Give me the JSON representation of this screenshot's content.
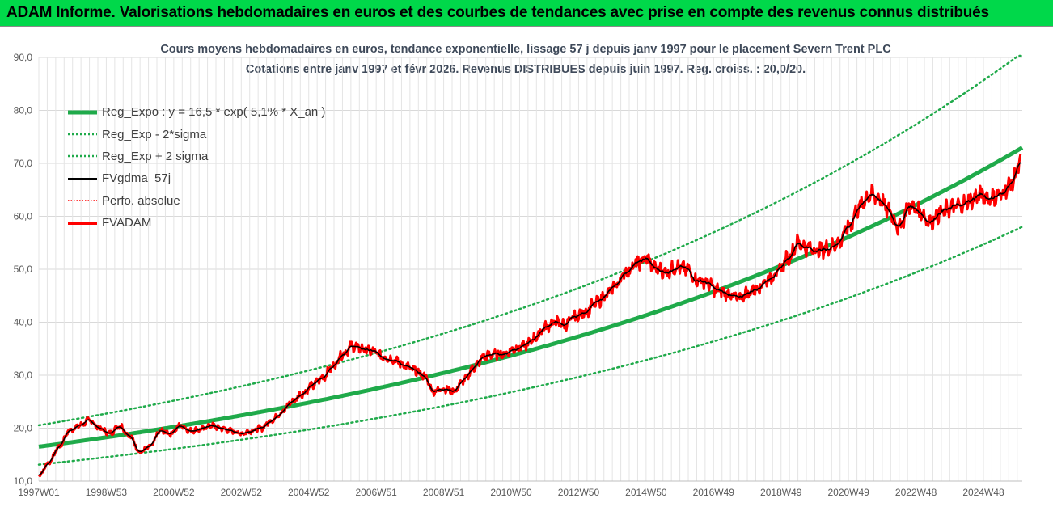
{
  "header": {
    "title": "ADAM Informe. Valorisations hebdomadaires en euros et des courbes de tendances avec prise en compte des revenus connus distribués"
  },
  "chart_data": {
    "type": "line",
    "title": "Cours moyens hebdomadaires en euros, tendance exponentielle, lissage 57 j depuis janv 1997 pour le placement Severn Trent PLC",
    "subtitle": "Cotations entre janv 1997 et févr 2026. Revenus DISTRIBUES depuis juin 1997. Reg. croiss. : 20,0/20.",
    "xlabel": "",
    "ylabel": "",
    "x_range": [
      1997.0,
      2026.15
    ],
    "ylim": [
      10.0,
      90.0
    ],
    "y_ticks": [
      "10,0",
      "20,0",
      "30,0",
      "40,0",
      "50,0",
      "60,0",
      "70,0",
      "80,0",
      "90,0"
    ],
    "x_ticks": [
      {
        "label": "1997W01",
        "year": 1997.0
      },
      {
        "label": "1998W53",
        "year": 1999.0
      },
      {
        "label": "2000W52",
        "year": 2001.0
      },
      {
        "label": "2002W52",
        "year": 2003.0
      },
      {
        "label": "2004W52",
        "year": 2005.0
      },
      {
        "label": "2006W51",
        "year": 2007.0
      },
      {
        "label": "2008W51",
        "year": 2009.0
      },
      {
        "label": "2010W50",
        "year": 2011.0
      },
      {
        "label": "2012W50",
        "year": 2013.0
      },
      {
        "label": "2014W50",
        "year": 2015.0
      },
      {
        "label": "2016W49",
        "year": 2017.0
      },
      {
        "label": "2018W49",
        "year": 2019.0
      },
      {
        "label": "2020W49",
        "year": 2021.0
      },
      {
        "label": "2022W48",
        "year": 2023.0
      },
      {
        "label": "2024W48",
        "year": 2025.0
      }
    ],
    "grid": true,
    "legend_placement": "top-left",
    "series": [
      {
        "name": "Reg_Expo : y = 16,5 * exp( 5,1% *  X_an )",
        "style": "thick-solid",
        "color": "#1faa4a",
        "formula": {
          "a": 16.5,
          "rate": 0.051
        }
      },
      {
        "name": "Reg_Exp - 2*sigma",
        "style": "dotted",
        "color": "#1faa4a",
        "formula": {
          "a": 16.5,
          "rate": 0.051,
          "factor": 0.795
        }
      },
      {
        "name": "Reg_Exp + 2 sigma",
        "style": "dotted",
        "color": "#1faa4a",
        "formula": {
          "a": 16.5,
          "rate": 0.051,
          "factor": 1.245
        }
      },
      {
        "name": "FVgdma_57j",
        "style": "solid",
        "color": "#000000"
      },
      {
        "name": "Perfo. absolue",
        "style": "dotted",
        "color": "#ff0000"
      },
      {
        "name": "FVADAM",
        "style": "thick-solid",
        "color": "#ff0000"
      }
    ],
    "fvadam": {
      "x": [
        1997.0,
        1997.3,
        1997.6,
        1997.9,
        1998.2,
        1998.5,
        1998.8,
        1999.1,
        1999.4,
        1999.7,
        2000.0,
        2000.3,
        2000.6,
        2000.9,
        2001.2,
        2001.5,
        2001.8,
        2002.1,
        2002.4,
        2002.7,
        2003.0,
        2003.3,
        2003.6,
        2003.9,
        2004.2,
        2004.5,
        2004.8,
        2005.1,
        2005.4,
        2005.7,
        2006.0,
        2006.3,
        2006.6,
        2006.9,
        2007.2,
        2007.5,
        2007.8,
        2008.1,
        2008.4,
        2008.7,
        2009.0,
        2009.3,
        2009.6,
        2009.9,
        2010.2,
        2010.5,
        2010.8,
        2011.1,
        2011.4,
        2011.7,
        2012.0,
        2012.3,
        2012.6,
        2012.9,
        2013.2,
        2013.5,
        2013.8,
        2014.1,
        2014.4,
        2014.7,
        2015.0,
        2015.3,
        2015.6,
        2015.9,
        2016.2,
        2016.5,
        2016.8,
        2017.1,
        2017.4,
        2017.7,
        2018.0,
        2018.3,
        2018.6,
        2018.9,
        2019.2,
        2019.5,
        2019.8,
        2020.1,
        2020.4,
        2020.7,
        2021.0,
        2021.3,
        2021.6,
        2021.9,
        2022.2,
        2022.5,
        2022.8,
        2023.1,
        2023.4,
        2023.7,
        2024.0,
        2024.3,
        2024.6,
        2024.9,
        2025.2,
        2025.5,
        2025.8,
        2026.1
      ],
      "y": [
        11.0,
        13.5,
        16.5,
        19.5,
        20.5,
        21.5,
        20.0,
        19.0,
        20.5,
        18.5,
        15.5,
        16.5,
        19.5,
        19.0,
        20.5,
        19.5,
        19.8,
        20.5,
        20.0,
        19.5,
        19.0,
        19.5,
        20.0,
        21.5,
        23.0,
        25.0,
        26.5,
        28.0,
        29.5,
        31.5,
        34.0,
        35.5,
        35.0,
        34.5,
        33.5,
        33.0,
        32.0,
        31.0,
        30.0,
        27.0,
        27.5,
        27.0,
        29.0,
        31.5,
        33.5,
        34.0,
        34.0,
        35.0,
        35.5,
        37.0,
        39.0,
        40.0,
        39.5,
        41.0,
        42.0,
        43.5,
        45.0,
        47.0,
        49.5,
        51.0,
        52.0,
        50.0,
        49.5,
        50.5,
        50.0,
        48.0,
        47.5,
        46.0,
        45.5,
        44.5,
        45.5,
        46.5,
        48.0,
        49.5,
        52.0,
        55.0,
        54.0,
        53.5,
        54.0,
        55.0,
        58.0,
        61.5,
        64.0,
        63.5,
        61.0,
        58.0,
        62.0,
        61.0,
        59.0,
        60.5,
        61.5,
        62.0,
        63.0,
        64.0,
        63.5,
        64.0,
        66.0,
        70.0
      ]
    }
  }
}
